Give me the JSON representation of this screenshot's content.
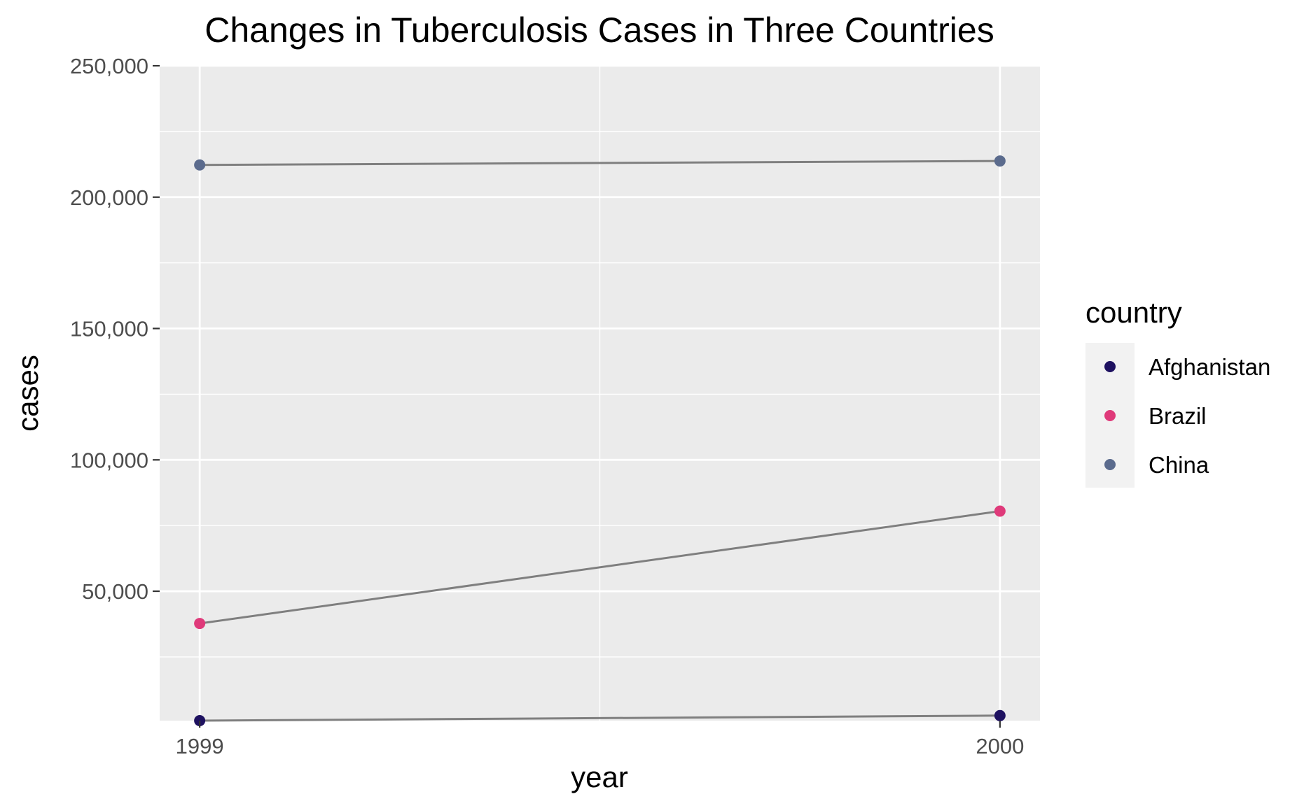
{
  "chart_data": {
    "type": "line",
    "title": "Changes in Tuberculosis Cases in Three Countries",
    "xlabel": "year",
    "ylabel": "cases",
    "x": [
      1999,
      2000
    ],
    "x_ticks": [
      "1999",
      "2000"
    ],
    "xlim": [
      1998.95,
      2000.05
    ],
    "ylim": [
      745,
      250000
    ],
    "y_ticks": [
      50000,
      100000,
      150000,
      200000,
      250000
    ],
    "y_tick_labels": [
      "50,000",
      "100,000",
      "150,000",
      "200,000",
      "250,000"
    ],
    "grid": true,
    "line_color": "#7f7f7f",
    "legend": {
      "title": "country",
      "placement": "right"
    },
    "series": [
      {
        "name": "Afghanistan",
        "values": [
          745,
          2666
        ],
        "color": "#1e1160"
      },
      {
        "name": "Brazil",
        "values": [
          37737,
          80488
        ],
        "color": "#df3a7a"
      },
      {
        "name": "China",
        "values": [
          212258,
          213766
        ],
        "color": "#5b6b8d"
      }
    ]
  }
}
